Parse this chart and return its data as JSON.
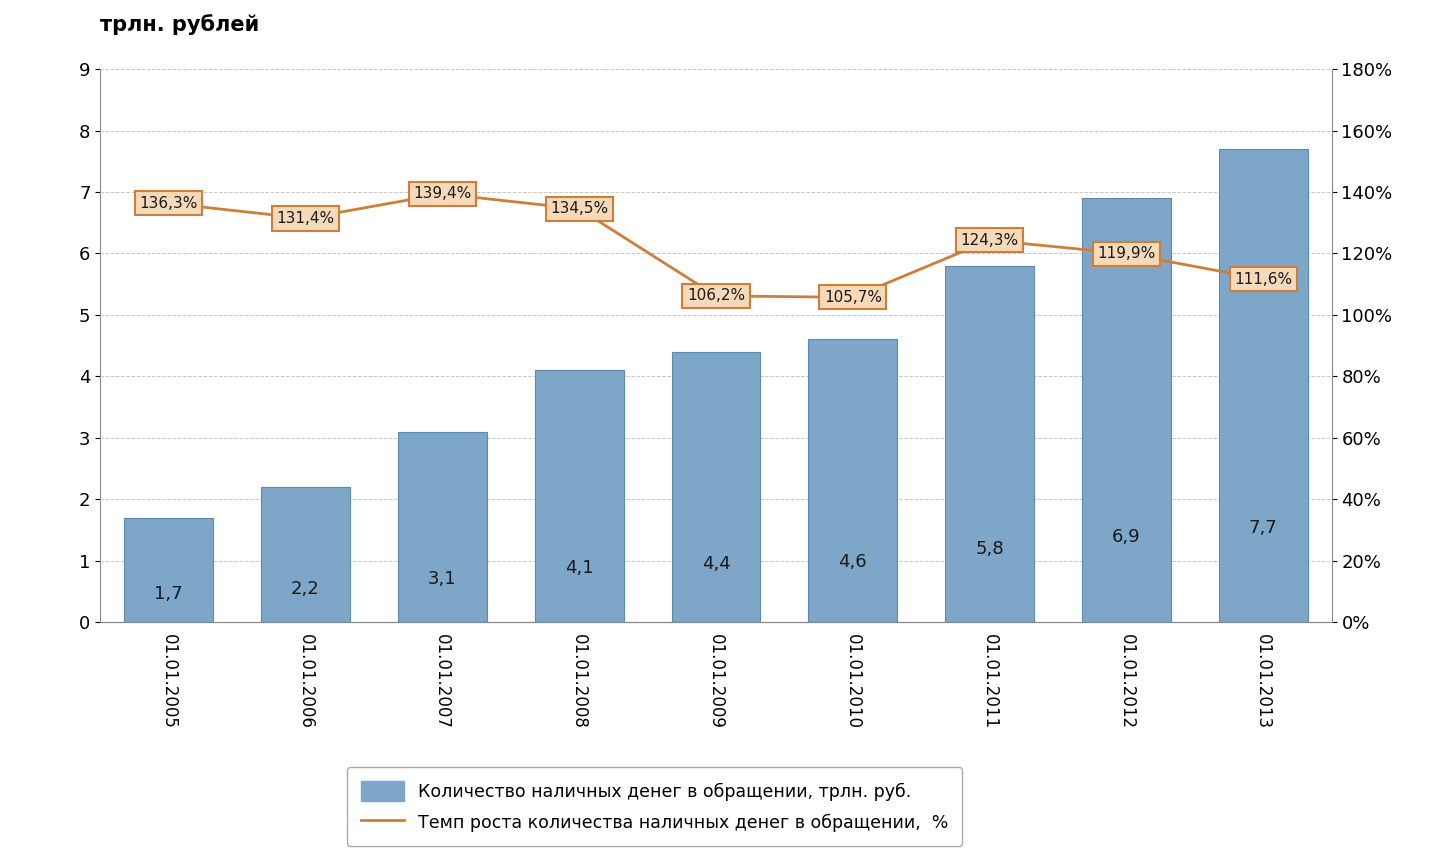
{
  "categories": [
    "01.01.2005",
    "01.01.2006",
    "01.01.2007",
    "01.01.2008",
    "01.01.2009",
    "01.01.2010",
    "01.01.2011",
    "01.01.2012",
    "01.01.2013"
  ],
  "bar_values": [
    1.7,
    2.2,
    3.1,
    4.1,
    4.4,
    4.6,
    5.8,
    6.9,
    7.7
  ],
  "line_values": [
    136.3,
    131.4,
    139.4,
    134.5,
    106.2,
    105.7,
    124.3,
    119.9,
    111.6
  ],
  "bar_color": "#7da6c8",
  "bar_edge_color": "#5a8aad",
  "line_color": "#cd7f3a",
  "line_box_fill": "#f5d9b8",
  "line_box_edge": "#cd7f3a",
  "title": "трлн. рублей",
  "ylim_left": [
    0,
    9
  ],
  "ylim_right": [
    0,
    180
  ],
  "yticks_left": [
    0,
    1,
    2,
    3,
    4,
    5,
    6,
    7,
    8,
    9
  ],
  "yticks_right": [
    0,
    20,
    40,
    60,
    80,
    100,
    120,
    140,
    160,
    180
  ],
  "ytick_right_labels": [
    "0%",
    "20%",
    "40%",
    "60%",
    "80%",
    "100%",
    "120%",
    "140%",
    "160%",
    "180%"
  ],
  "legend_bar_label": "Количество наличных денег в обращении, трлн. руб.",
  "legend_line_label": "Темп роста количества наличных денег в обращении,  %",
  "background_color": "#ffffff",
  "grid_color": "#c8c8c8"
}
